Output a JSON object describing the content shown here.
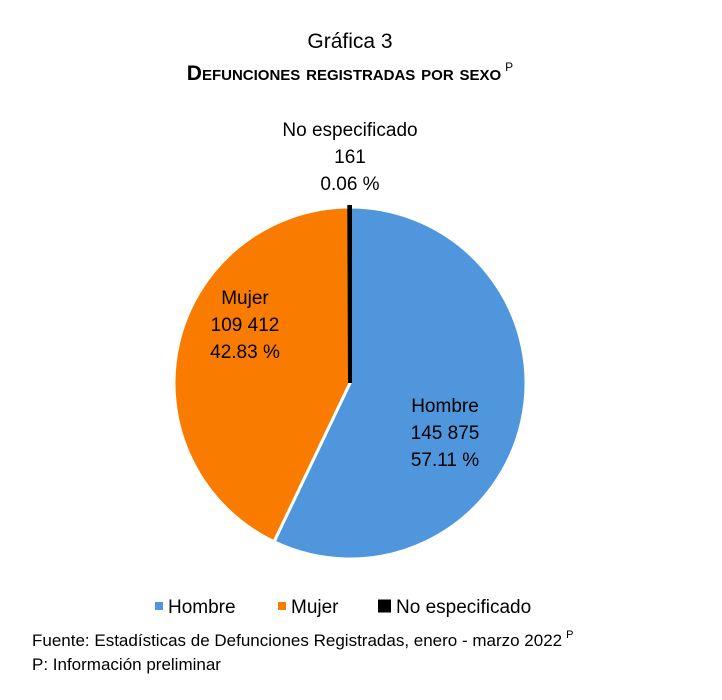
{
  "chart_data": {
    "type": "pie",
    "title": "Gráfica 3",
    "subtitle": "Defunciones registradas por sexo",
    "subtitle_mark": "P",
    "categories": [
      "Hombre",
      "Mujer",
      "No especificado"
    ],
    "values": [
      145875,
      109412,
      161
    ],
    "value_labels": [
      "145 875",
      "109 412",
      "161"
    ],
    "percent_labels": [
      "57.11 %",
      "42.83 %",
      "0.06 %"
    ],
    "colors": [
      "#4f96dc",
      "#f97b00",
      "#000000"
    ],
    "legend": "bottom",
    "source": "Fuente: Estadísticas de Defunciones Registradas, enero - marzo 2022",
    "source_mark": "P",
    "note": "P: Información preliminar"
  }
}
